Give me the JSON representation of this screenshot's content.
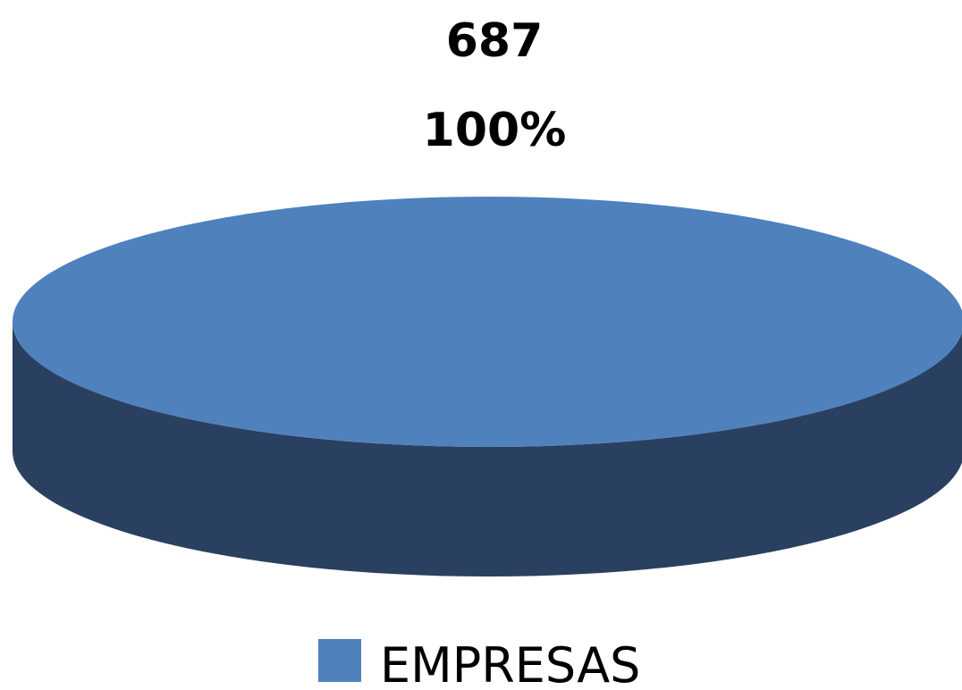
{
  "chart_data": {
    "type": "pie",
    "style": "3d",
    "categories": [
      "EMPRESAS"
    ],
    "values": [
      687
    ],
    "data_labels": [
      {
        "value_text": "687",
        "percent_text": "100%"
      }
    ],
    "colors": {
      "top": "#4f81bd",
      "side": "#2a4060"
    },
    "legend": {
      "position": "bottom",
      "entries": [
        "EMPRESAS"
      ]
    }
  }
}
